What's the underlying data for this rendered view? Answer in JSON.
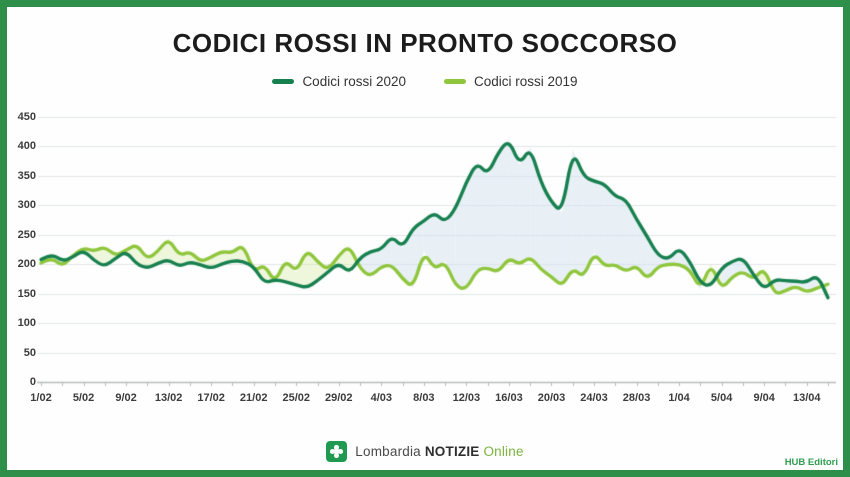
{
  "title": "CODICI ROSSI IN PRONTO SOCCORSO",
  "legend": {
    "items": [
      {
        "label": "Codici rossi 2020",
        "color": "#17804f"
      },
      {
        "label": "Codici rossi 2019",
        "color": "#8fc63d"
      }
    ]
  },
  "chart_data": {
    "type": "line",
    "title": "CODICI ROSSI IN PRONTO SOCCORSO",
    "xlabel": "",
    "ylabel": "",
    "ylim": [
      0,
      450
    ],
    "ytick_step": 50,
    "grid": true,
    "legend_position": "top",
    "x_label_every": 4,
    "x": [
      "1/02",
      "2/02",
      "3/02",
      "4/02",
      "5/02",
      "6/02",
      "7/02",
      "8/02",
      "9/02",
      "10/02",
      "11/02",
      "12/02",
      "13/02",
      "14/02",
      "15/02",
      "16/02",
      "17/02",
      "18/02",
      "19/02",
      "20/02",
      "21/02",
      "22/02",
      "23/02",
      "24/02",
      "25/02",
      "26/02",
      "27/02",
      "28/02",
      "29/02",
      "1/03",
      "2/03",
      "3/03",
      "4/03",
      "5/03",
      "6/03",
      "7/03",
      "8/03",
      "9/03",
      "10/03",
      "11/03",
      "12/03",
      "13/03",
      "14/03",
      "15/03",
      "16/03",
      "17/03",
      "18/03",
      "19/03",
      "20/03",
      "21/03",
      "22/03",
      "23/03",
      "24/03",
      "25/03",
      "26/03",
      "27/03",
      "28/03",
      "29/03",
      "30/03",
      "31/03",
      "1/04",
      "2/04",
      "3/04",
      "4/04",
      "5/04",
      "6/04",
      "7/04",
      "8/04",
      "9/04",
      "10/04",
      "11/04",
      "12/04",
      "13/04",
      "14/04",
      "15/04"
    ],
    "series": [
      {
        "name": "Codici rossi 2020",
        "color": "#17804f",
        "values": [
          208,
          218,
          205,
          212,
          224,
          206,
          196,
          210,
          222,
          200,
          193,
          202,
          208,
          196,
          204,
          199,
          193,
          200,
          206,
          205,
          196,
          168,
          174,
          170,
          165,
          160,
          172,
          187,
          202,
          185,
          211,
          222,
          225,
          248,
          228,
          262,
          273,
          288,
          271,
          295,
          340,
          373,
          352,
          390,
          412,
          368,
          399,
          339,
          305,
          288,
          395,
          349,
          341,
          336,
          315,
          310,
          276,
          247,
          215,
          208,
          228,
          205,
          168,
          162,
          194,
          205,
          211,
          182,
          157,
          174,
          172,
          171,
          169,
          182,
          143
        ]
      },
      {
        "name": "Codici rossi 2019",
        "color": "#8fc63d",
        "values": [
          202,
          212,
          196,
          215,
          228,
          222,
          230,
          214,
          224,
          234,
          208,
          222,
          244,
          214,
          222,
          204,
          212,
          222,
          219,
          234,
          187,
          200,
          168,
          208,
          186,
          225,
          204,
          190,
          215,
          232,
          192,
          179,
          196,
          199,
          175,
          160,
          222,
          191,
          205,
          162,
          157,
          191,
          194,
          186,
          211,
          199,
          213,
          191,
          179,
          162,
          194,
          177,
          220,
          196,
          200,
          187,
          198,
          174,
          196,
          200,
          200,
          191,
          157,
          202,
          157,
          179,
          188,
          174,
          194,
          148,
          155,
          163,
          152,
          160,
          166
        ]
      }
    ],
    "fill_between_colors": {
      "s2020_above": "rgba(213,227,238,0.55)",
      "s2019_above": "rgba(212,235,166,0.38)"
    }
  },
  "axis": {
    "grid_color": "#e3e5e7",
    "axis_color": "#b8bbbd",
    "label_color": "#3c3c3c"
  },
  "footer": {
    "brand": {
      "lombardia": "Lombardia",
      "notizie": "NOTIZIE",
      "online": "Online"
    },
    "credit": "HUB Editori"
  },
  "frame_color": "#2e8f4b"
}
